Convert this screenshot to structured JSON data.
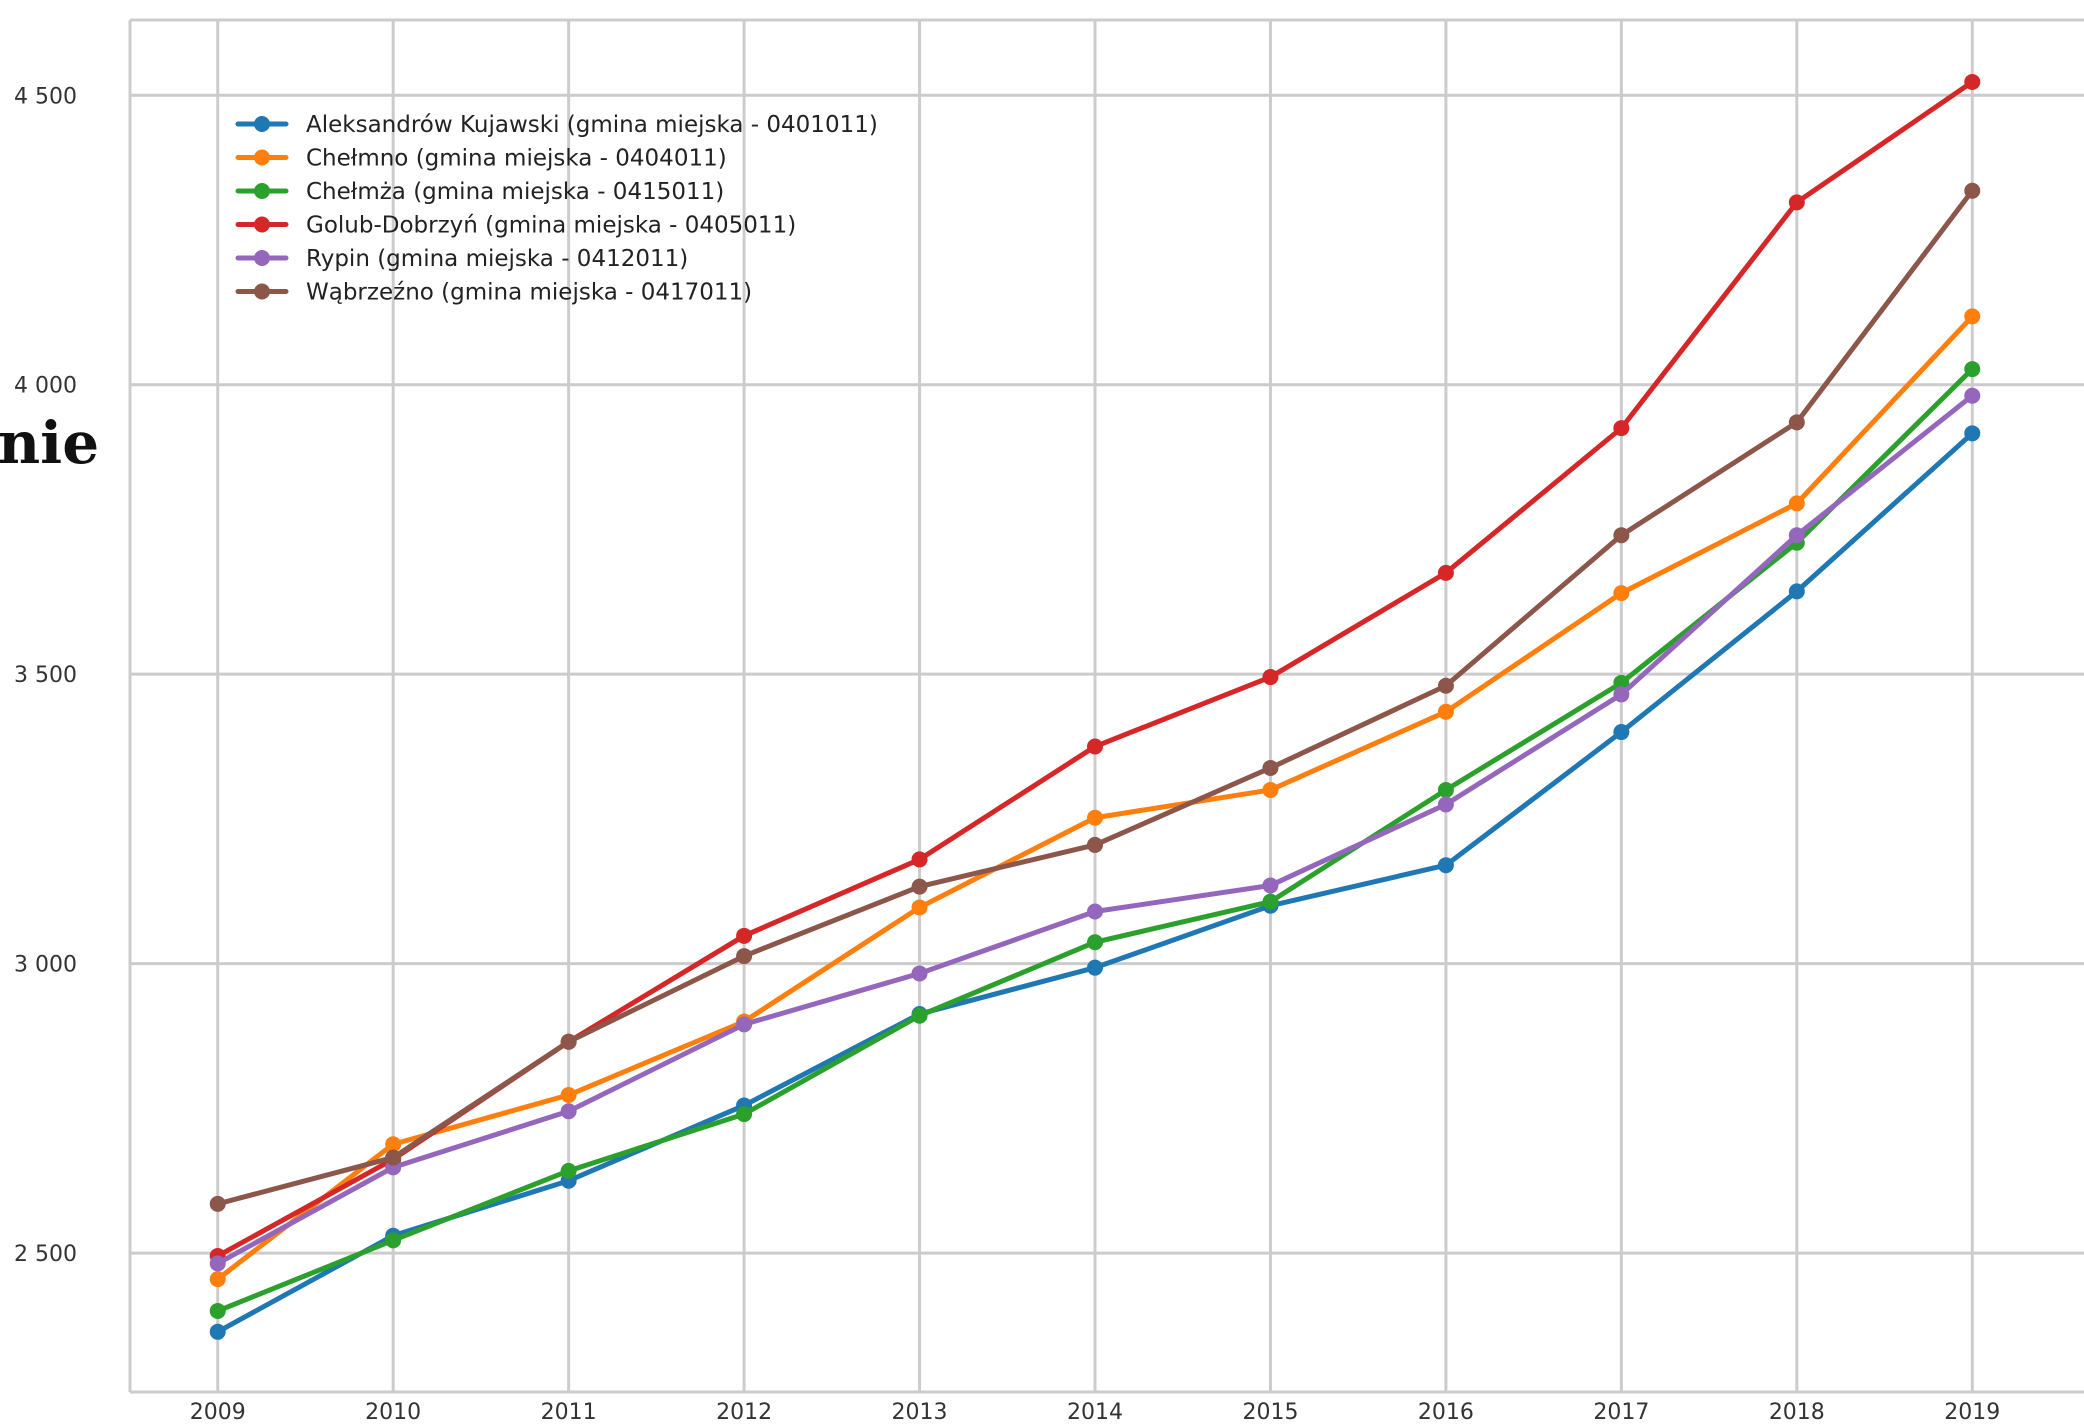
{
  "cropped_text": "nie",
  "chart_data": {
    "type": "line",
    "title": "",
    "xlabel": "",
    "ylabel": "",
    "x": [
      "2009",
      "2010",
      "2011",
      "2012",
      "2013",
      "2014",
      "2015",
      "2016",
      "2017",
      "2018",
      "2019"
    ],
    "xlim": [
      2008.5,
      2019.5
    ],
    "ylim": [
      2260,
      4630
    ],
    "y_ticks": [
      2500,
      3000,
      3500,
      4000,
      4500
    ],
    "y_tick_labels": [
      "2 500",
      "3 000",
      "3 500",
      "4 000",
      "4 500"
    ],
    "grid": true,
    "legend_position": "top-left",
    "series": [
      {
        "name": "Aleksandrów Kujawski (gmina miejska - 0401011)",
        "color": "#1f77b4",
        "values": [
          2364,
          2530,
          2625,
          2755,
          2913,
          2993,
          3100,
          3170,
          3400,
          3643,
          3916
        ]
      },
      {
        "name": "Chełmno (gmina miejska - 0404011)",
        "color": "#ff7f0e",
        "values": [
          2455,
          2688,
          2773,
          2900,
          3097,
          3252,
          3300,
          3435,
          3640,
          3795,
          4118
        ]
      },
      {
        "name": "Chełmża (gmina miejska - 0415011)",
        "color": "#2ca02c",
        "values": [
          2400,
          2522,
          2642,
          2740,
          2910,
          3037,
          3107,
          3300,
          3485,
          3727,
          4027
        ]
      },
      {
        "name": "Golub-Dobrzyń (gmina miejska - 0405011)",
        "color": "#d62728",
        "values": [
          2495,
          2662,
          2865,
          3048,
          3180,
          3375,
          3495,
          3675,
          3925,
          4315,
          4523
        ]
      },
      {
        "name": "Rypin (gmina miejska - 0412011)",
        "color": "#9467bd",
        "values": [
          2482,
          2648,
          2745,
          2895,
          2983,
          3090,
          3135,
          3275,
          3465,
          3740,
          3981
        ]
      },
      {
        "name": "Wąbrzeźno (gmina miejska - 0417011)",
        "color": "#8c564b",
        "values": [
          2585,
          2665,
          2865,
          3013,
          3133,
          3205,
          3338,
          3480,
          3740,
          3935,
          4335
        ]
      }
    ]
  }
}
